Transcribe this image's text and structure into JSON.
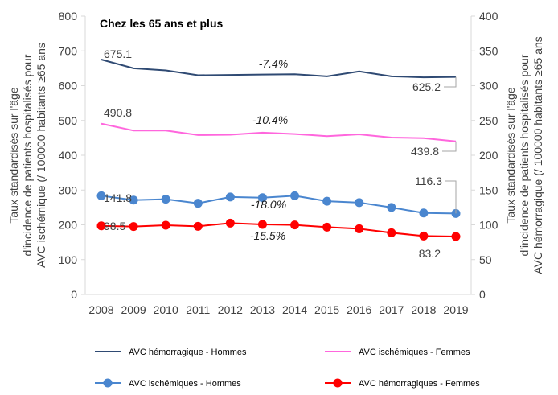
{
  "chart_data": {
    "type": "line",
    "title": "Chez les 65 ans et plus",
    "x": [
      "2008",
      "2009",
      "2010",
      "2011",
      "2012",
      "2013",
      "2014",
      "2015",
      "2016",
      "2017",
      "2018",
      "2019"
    ],
    "ylabel_left": "Taux standardisés  sur l'âge d'incidence de patients hospitalisés pour AVC ischémique (/ 100000 habitants ≥65 ans",
    "ylabel_left_lines": [
      "Taux standardisés  sur l'âge",
      "d'incidence de patients hospitalisés pour",
      "AVC ischémique  (/ 100000 habitants ≥65 ans"
    ],
    "ylabel_right": "Taux standardisés  sur l'âge d'incidence de patients hospitalisés pour AVC hémorragique (/ 100000 habitants ≥65 ans",
    "ylabel_right_lines": [
      "Taux standardisés  sur l'âge",
      "d'incidence de patients hospitalisés pour",
      "AVC hémorragique (/ 100000 habitants ≥65 ans"
    ],
    "ylim_left": [
      0,
      800
    ],
    "yticks_left": [
      0,
      100,
      200,
      300,
      400,
      500,
      600,
      700,
      800
    ],
    "ylim_right": [
      0,
      400
    ],
    "yticks_right": [
      0,
      50,
      100,
      150,
      200,
      250,
      300,
      350,
      400
    ],
    "grid": false,
    "legend_position": "bottom",
    "series": [
      {
        "name": "AVC hémorragique - Hommes",
        "axis": "left",
        "color": "#2F4A73",
        "markers": false,
        "values": [
          675.1,
          650,
          644,
          630,
          631,
          632,
          633,
          627,
          641,
          627,
          624,
          625.2
        ],
        "labels": {
          "first": "675.1",
          "last": "625.2",
          "change": "-7.4%"
        }
      },
      {
        "name": "AVC ischémiques - Femmes",
        "axis": "left",
        "color": "#FF66DD",
        "markers": false,
        "values": [
          490.8,
          471,
          471,
          458,
          459,
          465,
          461,
          455,
          460,
          451,
          449,
          439.8
        ],
        "labels": {
          "first": "490.8",
          "last": "439.8",
          "change": "-10.4%"
        }
      },
      {
        "name": "AVC ischémiques - Hommes",
        "axis": "right",
        "color": "#4A86CF",
        "markers": true,
        "values": [
          141.8,
          135.6,
          136.8,
          131,
          140,
          139,
          141.8,
          134,
          132,
          125,
          117,
          116.3
        ],
        "labels": {
          "first": "141.8",
          "last": "116.3",
          "change": "-18.0%"
        }
      },
      {
        "name": "AVC hémorragiques - Femmes",
        "axis": "right",
        "color": "#FF0000",
        "markers": true,
        "values": [
          98.5,
          97.5,
          99.4,
          97.9,
          102.5,
          100.6,
          99.8,
          96.7,
          94.3,
          88.6,
          84,
          83.2
        ],
        "labels": {
          "first": "98.5",
          "last": "83.2",
          "change": "-15.5%"
        }
      }
    ]
  }
}
